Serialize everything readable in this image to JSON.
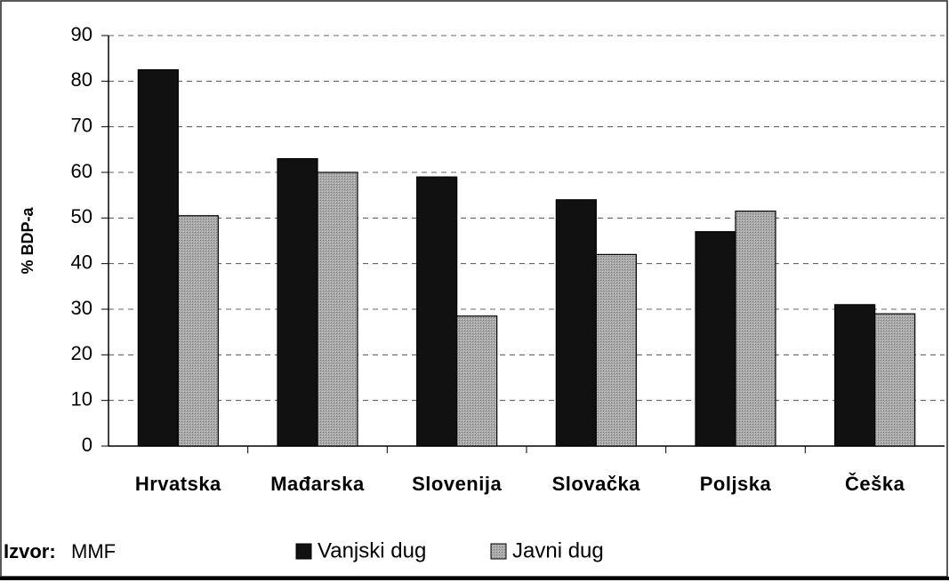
{
  "chart_data": {
    "type": "bar",
    "y_label": "% BDP-a",
    "source_label": "Izvor:",
    "source": "MMF",
    "categories": [
      "Hrvatska",
      "Mađarska",
      "Slovenija",
      "Slovačka",
      "Poljska",
      "Češka"
    ],
    "series": [
      {
        "name": "Vanjski dug",
        "color": "#111111",
        "values": [
          82.5,
          63,
          59,
          54,
          47,
          31
        ]
      },
      {
        "name": "Javni dug",
        "color": "#a9a9a9",
        "values": [
          50.5,
          60,
          28.5,
          42,
          51.5,
          29
        ]
      }
    ],
    "ylim": [
      0,
      90
    ],
    "yticks": [
      0,
      10,
      20,
      30,
      40,
      50,
      60,
      70,
      80,
      90
    ],
    "grid": true
  }
}
